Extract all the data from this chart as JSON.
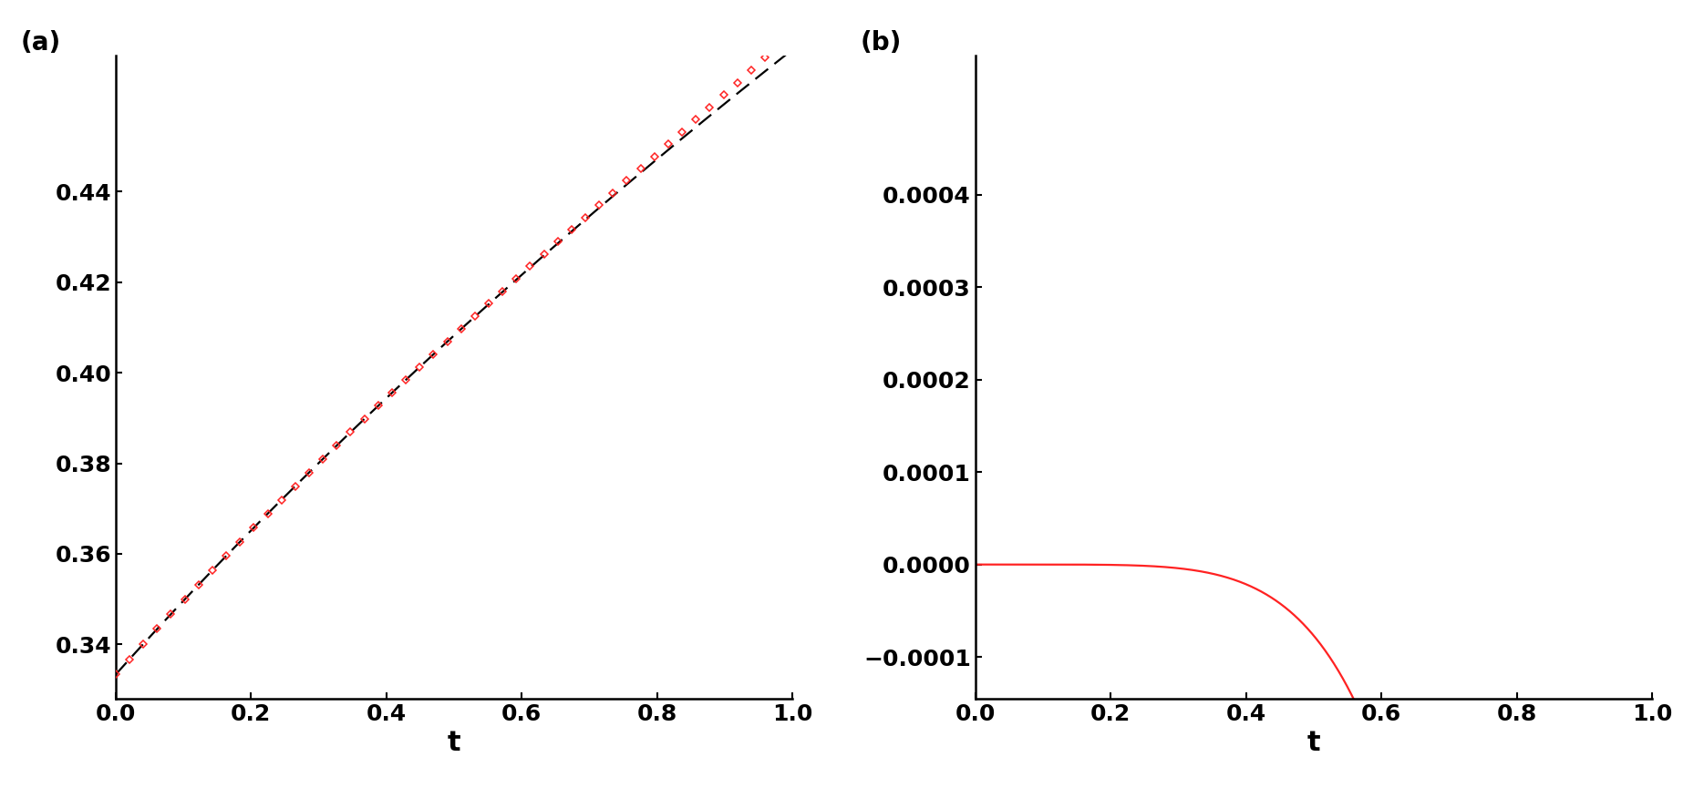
{
  "n_points": 2000,
  "n_diamond_points": 50,
  "t_min": 0.0,
  "t_max": 1.0,
  "xlabel": "t",
  "label_a": "(a)",
  "label_b": "(b)",
  "line_color_exact": "#000000",
  "line_color_approx": "#ff2222",
  "line_color_error": "#ff2222",
  "marker_style": "D",
  "marker_size": 4,
  "background_color": "#ffffff",
  "fontsize_label": 22,
  "fontsize_tick": 18,
  "fontsize_panel_label": 20,
  "panel_a_ylim": [
    0.328,
    0.47
  ],
  "panel_a_yticks": [
    0.34,
    0.36,
    0.38,
    0.4,
    0.42,
    0.44
  ],
  "panel_b_yticks": [
    -0.0001,
    0.0,
    0.0001,
    0.0002,
    0.0003,
    0.0004
  ],
  "panel_b_ylim": [
    -0.000145,
    0.00055
  ]
}
